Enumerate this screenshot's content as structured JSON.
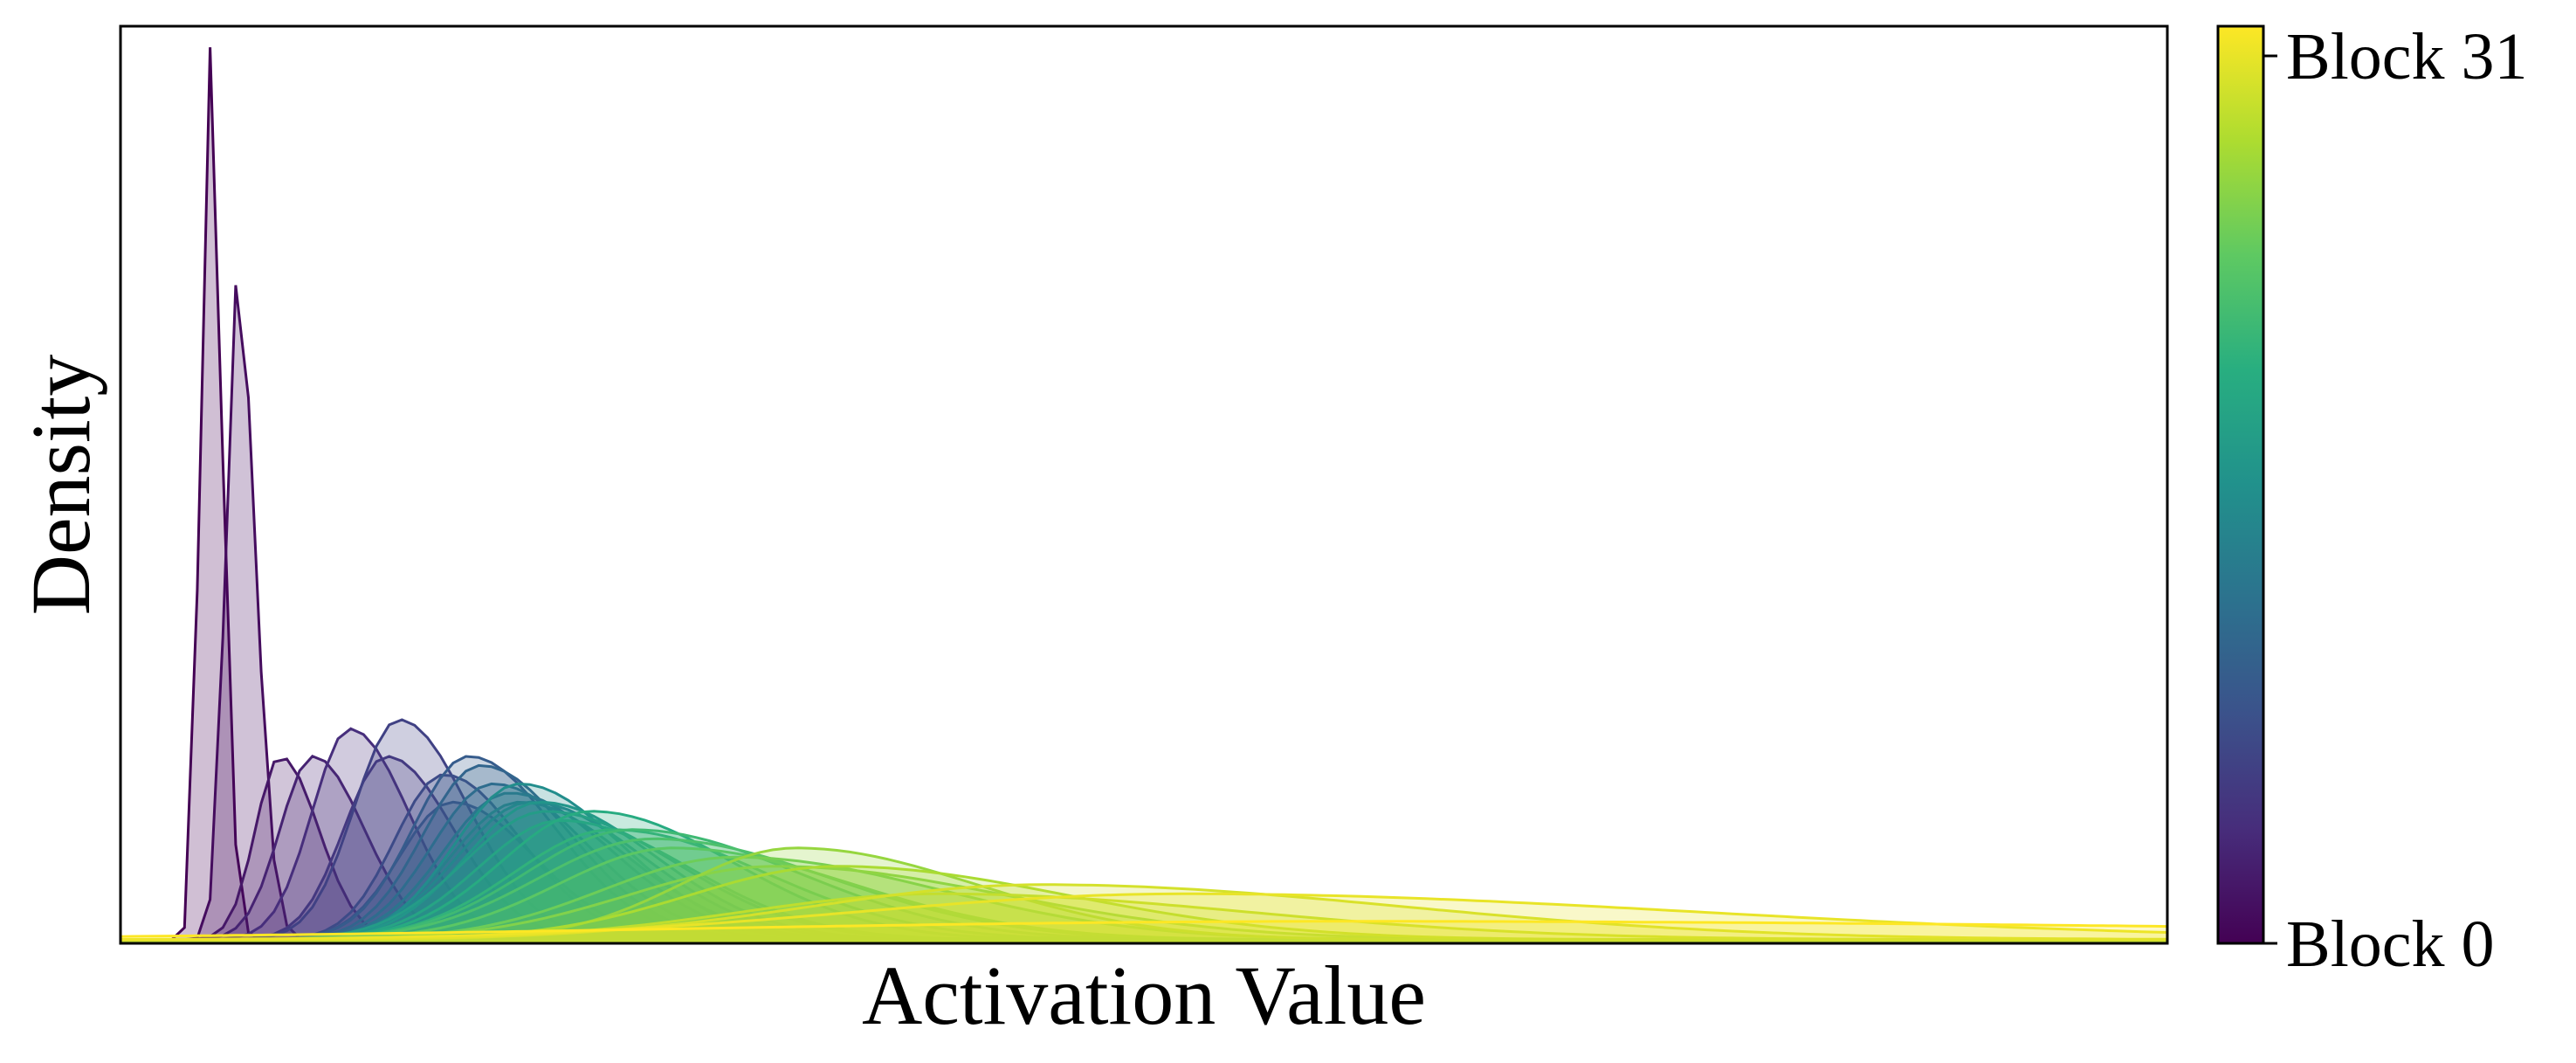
{
  "chart_data": {
    "type": "area",
    "xlabel": "Activation Value",
    "ylabel": "Density",
    "x_ticks_shown": false,
    "y_ticks_shown": false,
    "grid": false,
    "legend": "colorbar-right",
    "colormap": "viridis",
    "colorbar": {
      "min_label": "Block 0",
      "max_label": "Block 31",
      "min": 0,
      "max": 31
    },
    "xlim": [
      0,
      1
    ],
    "ylim": [
      0,
      1
    ],
    "series_count": 32,
    "series_peaks": [
      {
        "block": 0,
        "peak_x": 0.043,
        "peak_density": 0.98,
        "width": 0.005
      },
      {
        "block": 1,
        "peak_x": 0.057,
        "peak_density": 0.72,
        "width": 0.007
      },
      {
        "block": 2,
        "peak_x": 0.078,
        "peak_density": 0.2,
        "width": 0.015
      },
      {
        "block": 3,
        "peak_x": 0.094,
        "peak_density": 0.2,
        "width": 0.02
      },
      {
        "block": 4,
        "peak_x": 0.112,
        "peak_density": 0.23,
        "width": 0.023
      },
      {
        "block": 5,
        "peak_x": 0.13,
        "peak_density": 0.2,
        "width": 0.026
      },
      {
        "block": 6,
        "peak_x": 0.136,
        "peak_density": 0.24,
        "width": 0.027
      },
      {
        "block": 7,
        "peak_x": 0.158,
        "peak_density": 0.18,
        "width": 0.03
      },
      {
        "block": 8,
        "peak_x": 0.162,
        "peak_density": 0.15,
        "width": 0.032
      },
      {
        "block": 9,
        "peak_x": 0.17,
        "peak_density": 0.2,
        "width": 0.034
      },
      {
        "block": 10,
        "peak_x": 0.176,
        "peak_density": 0.19,
        "width": 0.035
      },
      {
        "block": 11,
        "peak_x": 0.182,
        "peak_density": 0.17,
        "width": 0.037
      },
      {
        "block": 12,
        "peak_x": 0.19,
        "peak_density": 0.16,
        "width": 0.04
      },
      {
        "block": 13,
        "peak_x": 0.195,
        "peak_density": 0.15,
        "width": 0.042
      },
      {
        "block": 14,
        "peak_x": 0.2,
        "peak_density": 0.15,
        "width": 0.044
      },
      {
        "block": 15,
        "peak_x": 0.195,
        "peak_density": 0.17,
        "width": 0.04
      },
      {
        "block": 16,
        "peak_x": 0.205,
        "peak_density": 0.15,
        "width": 0.045
      },
      {
        "block": 17,
        "peak_x": 0.208,
        "peak_density": 0.14,
        "width": 0.05
      },
      {
        "block": 18,
        "peak_x": 0.215,
        "peak_density": 0.13,
        "width": 0.05
      },
      {
        "block": 19,
        "peak_x": 0.23,
        "peak_density": 0.14,
        "width": 0.055
      },
      {
        "block": 20,
        "peak_x": 0.24,
        "peak_density": 0.12,
        "width": 0.06
      },
      {
        "block": 21,
        "peak_x": 0.25,
        "peak_density": 0.12,
        "width": 0.065
      },
      {
        "block": 22,
        "peak_x": 0.26,
        "peak_density": 0.11,
        "width": 0.07
      },
      {
        "block": 23,
        "peak_x": 0.27,
        "peak_density": 0.1,
        "width": 0.07
      },
      {
        "block": 24,
        "peak_x": 0.3,
        "peak_density": 0.09,
        "width": 0.08
      },
      {
        "block": 25,
        "peak_x": 0.32,
        "peak_density": 0.08,
        "width": 0.09
      },
      {
        "block": 26,
        "peak_x": 0.33,
        "peak_density": 0.1,
        "width": 0.07
      },
      {
        "block": 27,
        "peak_x": 0.35,
        "peak_density": 0.08,
        "width": 0.09
      },
      {
        "block": 28,
        "peak_x": 0.4,
        "peak_density": 0.05,
        "width": 0.12
      },
      {
        "block": 29,
        "peak_x": 0.45,
        "peak_density": 0.06,
        "width": 0.14
      },
      {
        "block": 30,
        "peak_x": 0.52,
        "peak_density": 0.05,
        "width": 0.2
      },
      {
        "block": 31,
        "peak_x": 0.6,
        "peak_density": 0.02,
        "width": 0.4
      }
    ]
  }
}
